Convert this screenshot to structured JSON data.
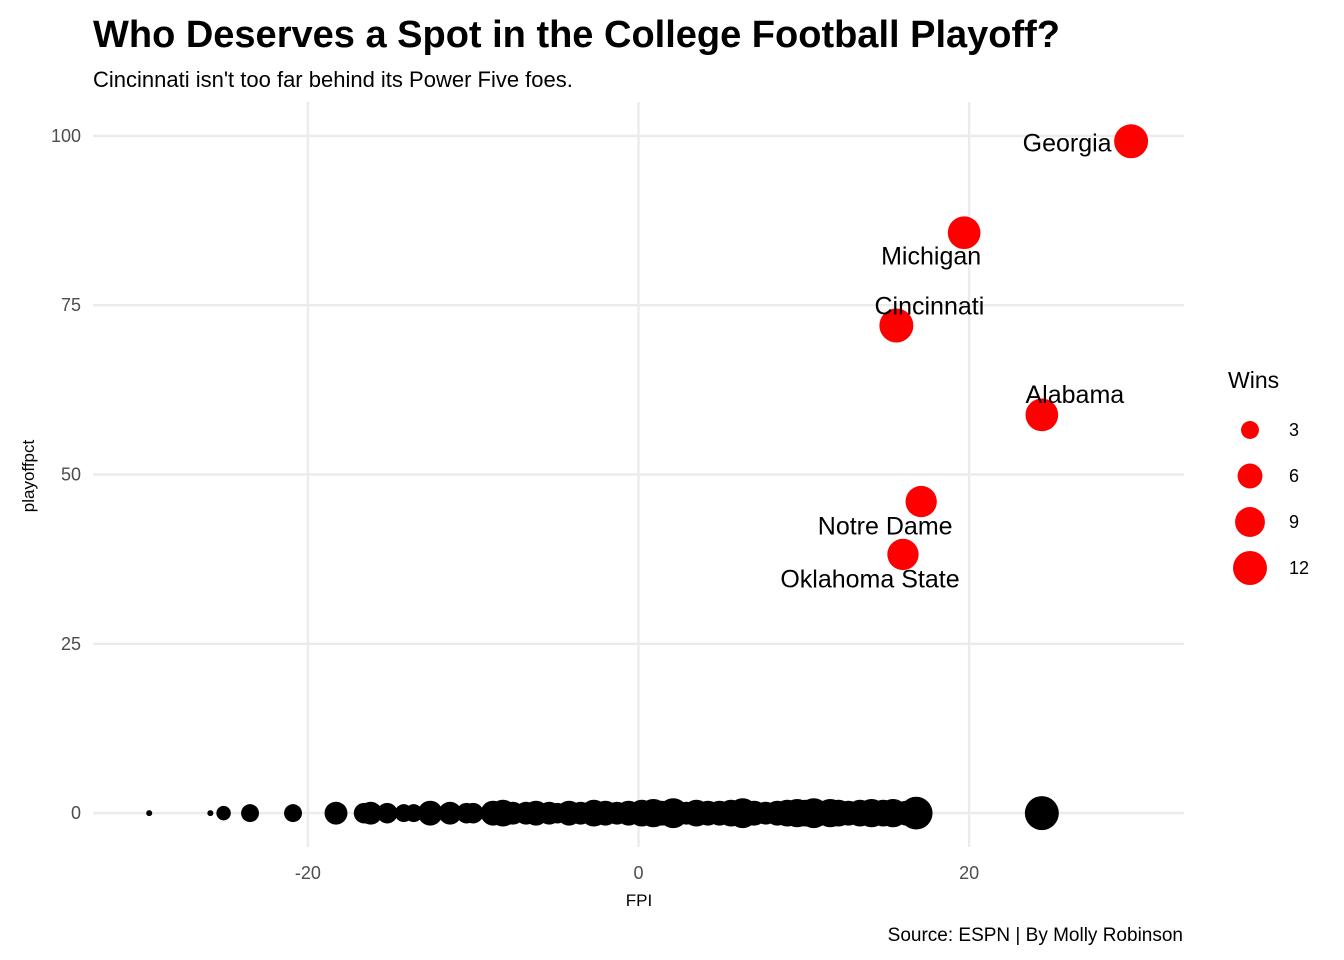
{
  "chart_data": {
    "type": "scatter",
    "title": "Who Deserves a Spot in the College Football Playoff?",
    "subtitle": "Cincinnati isn't too far behind its Power Five foes.",
    "caption": "Source: ESPN | By Molly Robinson",
    "xlabel": "FPI",
    "ylabel": "playoffpct",
    "xlim": [
      -33,
      33
    ],
    "ylim": [
      -5,
      105
    ],
    "x_ticks": [
      -20,
      0,
      20
    ],
    "x_tick_labels": [
      "-20",
      "0",
      "20"
    ],
    "y_ticks": [
      0,
      25,
      50,
      75,
      100
    ],
    "y_tick_labels": [
      "0",
      "25",
      "50",
      "75",
      "100"
    ],
    "grid": true,
    "size_legend": {
      "title": "Wins",
      "placement": "right",
      "values": [
        3,
        6,
        9,
        12
      ],
      "labels": [
        "3",
        "6",
        "9",
        "12"
      ]
    },
    "colors": {
      "highlight": "#ff0000",
      "other": "#000000",
      "grid": "#ebebeb"
    },
    "highlighted": [
      {
        "name": "Georgia",
        "fpi": 29.8,
        "playoffpct": 99.2,
        "wins": 12
      },
      {
        "name": "Michigan",
        "fpi": 19.7,
        "playoffpct": 85.7,
        "wins": 11
      },
      {
        "name": "Cincinnati",
        "fpi": 15.6,
        "playoffpct": 72.0,
        "wins": 12
      },
      {
        "name": "Alabama",
        "fpi": 24.4,
        "playoffpct": 58.8,
        "wins": 11
      },
      {
        "name": "Notre Dame",
        "fpi": 17.1,
        "playoffpct": 46.0,
        "wins": 10
      },
      {
        "name": "Oklahoma State",
        "fpi": 16.0,
        "playoffpct": 38.2,
        "wins": 10
      }
    ],
    "others": [
      {
        "fpi": -29.6,
        "playoffpct": 0,
        "wins": 1
      },
      {
        "fpi": -25.9,
        "playoffpct": 0,
        "wins": 1
      },
      {
        "fpi": -25.1,
        "playoffpct": 0,
        "wins": 2
      },
      {
        "fpi": -23.5,
        "playoffpct": 0,
        "wins": 3
      },
      {
        "fpi": -20.9,
        "playoffpct": 0,
        "wins": 3
      },
      {
        "fpi": -18.3,
        "playoffpct": 0,
        "wins": 5
      },
      {
        "fpi": -16.6,
        "playoffpct": 0,
        "wins": 4
      },
      {
        "fpi": -16.2,
        "playoffpct": 0,
        "wins": 5
      },
      {
        "fpi": -15.2,
        "playoffpct": 0,
        "wins": 4
      },
      {
        "fpi": -14.2,
        "playoffpct": 0,
        "wins": 3
      },
      {
        "fpi": -13.6,
        "playoffpct": 0,
        "wins": 3
      },
      {
        "fpi": -12.6,
        "playoffpct": 0,
        "wins": 6
      },
      {
        "fpi": -11.4,
        "playoffpct": 0,
        "wins": 5
      },
      {
        "fpi": -10.4,
        "playoffpct": 0,
        "wins": 4
      },
      {
        "fpi": -10.0,
        "playoffpct": 0,
        "wins": 4
      },
      {
        "fpi": -8.8,
        "playoffpct": 0,
        "wins": 6
      },
      {
        "fpi": -8.2,
        "playoffpct": 0,
        "wins": 7
      },
      {
        "fpi": -7.6,
        "playoffpct": 0,
        "wins": 5
      },
      {
        "fpi": -6.8,
        "playoffpct": 0,
        "wins": 5
      },
      {
        "fpi": -6.2,
        "playoffpct": 0,
        "wins": 6
      },
      {
        "fpi": -5.4,
        "playoffpct": 0,
        "wins": 5
      },
      {
        "fpi": -4.9,
        "playoffpct": 0,
        "wins": 4
      },
      {
        "fpi": -4.2,
        "playoffpct": 0,
        "wins": 6
      },
      {
        "fpi": -3.5,
        "playoffpct": 0,
        "wins": 5
      },
      {
        "fpi": -2.7,
        "playoffpct": 0,
        "wins": 7
      },
      {
        "fpi": -2.0,
        "playoffpct": 0,
        "wins": 6
      },
      {
        "fpi": -1.3,
        "playoffpct": 0,
        "wins": 5
      },
      {
        "fpi": -0.6,
        "playoffpct": 0,
        "wins": 6
      },
      {
        "fpi": 0.2,
        "playoffpct": 0,
        "wins": 7
      },
      {
        "fpi": 0.9,
        "playoffpct": 0,
        "wins": 8
      },
      {
        "fpi": 1.4,
        "playoffpct": 0,
        "wins": 6
      },
      {
        "fpi": 2.1,
        "playoffpct": 0,
        "wins": 9
      },
      {
        "fpi": 2.9,
        "playoffpct": 0,
        "wins": 5
      },
      {
        "fpi": 3.5,
        "playoffpct": 0,
        "wins": 7
      },
      {
        "fpi": 4.2,
        "playoffpct": 0,
        "wins": 6
      },
      {
        "fpi": 4.9,
        "playoffpct": 0,
        "wins": 6
      },
      {
        "fpi": 5.6,
        "playoffpct": 0,
        "wins": 7
      },
      {
        "fpi": 6.3,
        "playoffpct": 0,
        "wins": 9
      },
      {
        "fpi": 7.0,
        "playoffpct": 0,
        "wins": 6
      },
      {
        "fpi": 7.7,
        "playoffpct": 0,
        "wins": 5
      },
      {
        "fpi": 8.4,
        "playoffpct": 0,
        "wins": 6
      },
      {
        "fpi": 9.0,
        "playoffpct": 0,
        "wins": 7
      },
      {
        "fpi": 9.6,
        "playoffpct": 0,
        "wins": 8
      },
      {
        "fpi": 10.1,
        "playoffpct": 0,
        "wins": 7
      },
      {
        "fpi": 10.6,
        "playoffpct": 0,
        "wins": 9
      },
      {
        "fpi": 11.1,
        "playoffpct": 0,
        "wins": 6
      },
      {
        "fpi": 11.6,
        "playoffpct": 0,
        "wins": 8
      },
      {
        "fpi": 12.1,
        "playoffpct": 0,
        "wins": 7
      },
      {
        "fpi": 12.7,
        "playoffpct": 0,
        "wins": 6
      },
      {
        "fpi": 13.4,
        "playoffpct": 0,
        "wins": 7
      },
      {
        "fpi": 14.1,
        "playoffpct": 0,
        "wins": 8
      },
      {
        "fpi": 14.8,
        "playoffpct": 0,
        "wins": 7
      },
      {
        "fpi": 15.4,
        "playoffpct": 0,
        "wins": 8
      },
      {
        "fpi": 16.2,
        "playoffpct": 0,
        "wins": 6
      },
      {
        "fpi": 16.8,
        "playoffpct": 0,
        "wins": 11
      },
      {
        "fpi": 24.4,
        "playoffpct": 0,
        "wins": 12
      }
    ]
  }
}
